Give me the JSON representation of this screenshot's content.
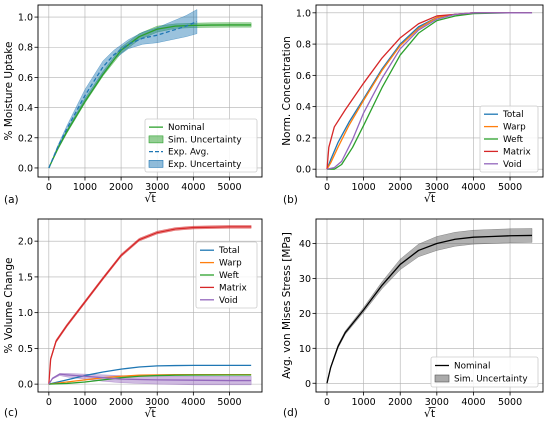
{
  "chart_data": [
    {
      "type": "line",
      "panel": "(a)",
      "xlabel": "√t",
      "ylabel": "% Moisture Uptake",
      "xlim": [
        -300,
        5900
      ],
      "ylim": [
        -0.06,
        1.08
      ],
      "xticks": [
        0,
        1000,
        2000,
        3000,
        4000,
        5000
      ],
      "yticks": [
        0.0,
        0.2,
        0.4,
        0.6,
        0.8,
        1.0
      ],
      "xtick_labels": [
        "0",
        "1000",
        "2000",
        "3000",
        "4000",
        "5000"
      ],
      "ytick_labels": [
        "0.0",
        "0.2",
        "0.4",
        "0.6",
        "0.8",
        "1.0"
      ],
      "grid": true,
      "legend_position": "lower-right",
      "legend": [
        {
          "label": "Nominal",
          "kind": "line",
          "color": "#2ca02c"
        },
        {
          "label": "Sim. Uncertainty",
          "kind": "patch",
          "color": "#2ca02c"
        },
        {
          "label": "Exp. Avg.",
          "kind": "dashed",
          "color": "#1f77b4"
        },
        {
          "label": "Exp. Uncertainty",
          "kind": "patch",
          "color": "#1f77b4"
        }
      ],
      "series": [
        {
          "name": "Nominal",
          "color": "#2ca02c",
          "x": [
            0,
            250,
            500,
            1000,
            1500,
            2000,
            2500,
            3000,
            3500,
            4000,
            4500,
            5000,
            5600
          ],
          "y": [
            0.0,
            0.13,
            0.24,
            0.44,
            0.62,
            0.78,
            0.87,
            0.92,
            0.94,
            0.945,
            0.947,
            0.948,
            0.948
          ]
        },
        {
          "name": "Exp. Avg.",
          "color": "#1f77b4",
          "dash": true,
          "x": [
            0,
            250,
            500,
            1000,
            1500,
            1800,
            2200,
            2600,
            3000,
            3400,
            3800,
            4100
          ],
          "y": [
            0.0,
            0.14,
            0.26,
            0.48,
            0.67,
            0.75,
            0.82,
            0.86,
            0.88,
            0.91,
            0.94,
            0.97
          ]
        }
      ],
      "bands": [
        {
          "name": "Sim. Uncertainty",
          "color": "#2ca02c",
          "x": [
            0,
            250,
            500,
            1000,
            1500,
            2000,
            2500,
            3000,
            3500,
            4000,
            4500,
            5000,
            5600
          ],
          "lower": [
            0.0,
            0.12,
            0.23,
            0.43,
            0.61,
            0.76,
            0.85,
            0.9,
            0.925,
            0.93,
            0.932,
            0.933,
            0.933
          ],
          "upper": [
            0.0,
            0.14,
            0.25,
            0.46,
            0.64,
            0.8,
            0.89,
            0.94,
            0.955,
            0.96,
            0.962,
            0.963,
            0.963
          ]
        },
        {
          "name": "Exp. Uncertainty",
          "color": "#1f77b4",
          "x": [
            0,
            250,
            500,
            1000,
            1500,
            1800,
            2200,
            2600,
            3000,
            3400,
            3800,
            4100
          ],
          "lower": [
            0.0,
            0.13,
            0.24,
            0.44,
            0.63,
            0.72,
            0.79,
            0.82,
            0.83,
            0.85,
            0.87,
            0.89
          ],
          "upper": [
            0.0,
            0.15,
            0.28,
            0.52,
            0.71,
            0.78,
            0.85,
            0.9,
            0.93,
            0.97,
            1.01,
            1.05
          ]
        }
      ]
    },
    {
      "type": "line",
      "panel": "(b)",
      "xlabel": "√t",
      "ylabel": "Norm. Concentration",
      "xlim": [
        -300,
        5900
      ],
      "ylim": [
        -0.05,
        1.05
      ],
      "xticks": [
        0,
        1000,
        2000,
        3000,
        4000,
        5000
      ],
      "yticks": [
        0.0,
        0.2,
        0.4,
        0.6,
        0.8,
        1.0
      ],
      "xtick_labels": [
        "0",
        "1000",
        "2000",
        "3000",
        "4000",
        "5000"
      ],
      "ytick_labels": [
        "0.0",
        "0.2",
        "0.4",
        "0.6",
        "0.8",
        "1.0"
      ],
      "grid": true,
      "legend_position": "lower-right",
      "legend": [
        {
          "label": "Total",
          "kind": "line",
          "color": "#1f77b4"
        },
        {
          "label": "Warp",
          "kind": "line",
          "color": "#ff7f0e"
        },
        {
          "label": "Weft",
          "kind": "line",
          "color": "#2ca02c"
        },
        {
          "label": "Matrix",
          "kind": "line",
          "color": "#d62728"
        },
        {
          "label": "Void",
          "kind": "line",
          "color": "#9467bd"
        }
      ],
      "series": [
        {
          "name": "Total",
          "color": "#1f77b4",
          "x": [
            0,
            100,
            300,
            600,
            1000,
            1500,
            2000,
            2500,
            3000,
            3500,
            4000,
            5000,
            5600
          ],
          "y": [
            0.0,
            0.06,
            0.17,
            0.3,
            0.45,
            0.64,
            0.8,
            0.91,
            0.97,
            0.99,
            1.0,
            1.0,
            1.0
          ]
        },
        {
          "name": "Warp",
          "color": "#ff7f0e",
          "x": [
            0,
            100,
            300,
            600,
            1000,
            1500,
            2000,
            2500,
            3000,
            3500,
            4000,
            5000,
            5600
          ],
          "y": [
            0.0,
            0.04,
            0.14,
            0.28,
            0.44,
            0.63,
            0.79,
            0.9,
            0.97,
            0.99,
            1.0,
            1.0,
            1.0
          ]
        },
        {
          "name": "Weft",
          "color": "#2ca02c",
          "x": [
            0,
            200,
            400,
            700,
            1000,
            1500,
            2000,
            2500,
            3000,
            3500,
            4000,
            5000,
            5600
          ],
          "y": [
            0.0,
            0.0,
            0.03,
            0.14,
            0.28,
            0.52,
            0.73,
            0.87,
            0.95,
            0.98,
            0.995,
            1.0,
            1.0
          ]
        },
        {
          "name": "Matrix",
          "color": "#d62728",
          "x": [
            0,
            50,
            200,
            500,
            1000,
            1500,
            2000,
            2500,
            3000,
            3500,
            4000,
            5000,
            5600
          ],
          "y": [
            0.0,
            0.14,
            0.27,
            0.38,
            0.55,
            0.71,
            0.84,
            0.93,
            0.98,
            0.99,
            1.0,
            1.0,
            1.0
          ]
        },
        {
          "name": "Void",
          "color": "#9467bd",
          "x": [
            0,
            200,
            400,
            700,
            1000,
            1500,
            2000,
            2500,
            3000,
            3500,
            4000,
            5000,
            5600
          ],
          "y": [
            0.0,
            0.01,
            0.05,
            0.19,
            0.36,
            0.58,
            0.77,
            0.89,
            0.96,
            0.99,
            1.0,
            1.0,
            1.0
          ]
        }
      ]
    },
    {
      "type": "line",
      "panel": "(c)",
      "xlabel": "√t",
      "ylabel": "% Volume Change",
      "xlim": [
        -300,
        5900
      ],
      "ylim": [
        -0.11,
        2.31
      ],
      "xticks": [
        0,
        1000,
        2000,
        3000,
        4000,
        5000
      ],
      "yticks": [
        0.0,
        0.5,
        1.0,
        1.5,
        2.0
      ],
      "xtick_labels": [
        "0",
        "1000",
        "2000",
        "3000",
        "4000",
        "5000"
      ],
      "ytick_labels": [
        "0.0",
        "0.5",
        "1.0",
        "1.5",
        "2.0"
      ],
      "grid": true,
      "legend_position": "center-right",
      "legend": [
        {
          "label": "Total",
          "kind": "line",
          "color": "#1f77b4"
        },
        {
          "label": "Warp",
          "kind": "line",
          "color": "#ff7f0e"
        },
        {
          "label": "Weft",
          "kind": "line",
          "color": "#2ca02c"
        },
        {
          "label": "Matrix",
          "kind": "line",
          "color": "#d62728"
        },
        {
          "label": "Void",
          "kind": "line",
          "color": "#9467bd"
        }
      ],
      "series": [
        {
          "name": "Total",
          "color": "#1f77b4",
          "x": [
            0,
            500,
            1000,
            1500,
            2000,
            2500,
            3000,
            3500,
            4000,
            5000,
            5600
          ],
          "y": [
            0.0,
            0.06,
            0.12,
            0.17,
            0.21,
            0.24,
            0.255,
            0.26,
            0.262,
            0.263,
            0.263
          ]
        },
        {
          "name": "Warp",
          "color": "#ff7f0e",
          "x": [
            0,
            500,
            1000,
            1500,
            2000,
            2500,
            3000,
            3500,
            4000,
            5000,
            5600
          ],
          "y": [
            0.0,
            0.03,
            0.06,
            0.09,
            0.11,
            0.125,
            0.13,
            0.132,
            0.133,
            0.133,
            0.133
          ]
        },
        {
          "name": "Weft",
          "color": "#2ca02c",
          "x": [
            0,
            500,
            1000,
            1500,
            2000,
            2500,
            3000,
            3500,
            4000,
            5000,
            5600
          ],
          "y": [
            0.0,
            0.01,
            0.03,
            0.06,
            0.09,
            0.11,
            0.12,
            0.125,
            0.127,
            0.128,
            0.128
          ]
        },
        {
          "name": "Matrix",
          "color": "#d62728",
          "x": [
            0,
            50,
            200,
            500,
            1000,
            1500,
            2000,
            2500,
            3000,
            3500,
            4000,
            5000,
            5600
          ],
          "y": [
            0.0,
            0.35,
            0.6,
            0.82,
            1.15,
            1.48,
            1.8,
            2.02,
            2.12,
            2.17,
            2.19,
            2.2,
            2.2
          ]
        },
        {
          "name": "Void",
          "color": "#9467bd",
          "x": [
            0,
            100,
            300,
            500,
            1000,
            1500,
            2000,
            3000,
            4000,
            5000,
            5600
          ],
          "y": [
            0.0,
            0.08,
            0.14,
            0.13,
            0.11,
            0.09,
            0.07,
            0.06,
            0.055,
            0.05,
            0.05
          ]
        }
      ],
      "bands": [
        {
          "name": "Matrix",
          "color": "#d62728",
          "x": [
            0,
            50,
            200,
            500,
            1000,
            1500,
            2000,
            2500,
            3000,
            3500,
            4000,
            5000,
            5600
          ],
          "lower": [
            0.0,
            0.33,
            0.58,
            0.8,
            1.13,
            1.46,
            1.78,
            2.0,
            2.1,
            2.15,
            2.17,
            2.18,
            2.18
          ],
          "upper": [
            0.0,
            0.37,
            0.62,
            0.84,
            1.17,
            1.5,
            1.82,
            2.04,
            2.14,
            2.19,
            2.21,
            2.22,
            2.22
          ]
        },
        {
          "name": "Void",
          "color": "#9467bd",
          "x": [
            0,
            100,
            300,
            500,
            1000,
            1500,
            2000,
            3000,
            4000,
            5000,
            5600
          ],
          "lower": [
            0.0,
            0.07,
            0.12,
            0.1,
            0.07,
            0.04,
            0.02,
            0.0,
            -0.01,
            -0.01,
            -0.01
          ],
          "upper": [
            0.0,
            0.09,
            0.15,
            0.15,
            0.14,
            0.13,
            0.12,
            0.11,
            0.11,
            0.11,
            0.11
          ]
        }
      ]
    },
    {
      "type": "line",
      "panel": "(d)",
      "xlabel": "√t",
      "ylabel": "Avg. von Mises Stress [MPa]",
      "xlim": [
        -300,
        5900
      ],
      "ylim": [
        -2.5,
        47
      ],
      "xticks": [
        0,
        1000,
        2000,
        3000,
        4000,
        5000
      ],
      "yticks": [
        0,
        10,
        20,
        30,
        40
      ],
      "xtick_labels": [
        "0",
        "1000",
        "2000",
        "3000",
        "4000",
        "5000"
      ],
      "ytick_labels": [
        "0",
        "10",
        "20",
        "30",
        "40"
      ],
      "grid": true,
      "legend_position": "lower-right",
      "legend": [
        {
          "label": "Nominal",
          "kind": "line",
          "color": "#000000"
        },
        {
          "label": "Sim. Uncertainty",
          "kind": "patch",
          "color": "#555555"
        }
      ],
      "series": [
        {
          "name": "Nominal",
          "color": "#000000",
          "x": [
            0,
            100,
            300,
            500,
            1000,
            1500,
            2000,
            2500,
            3000,
            3500,
            4000,
            4500,
            5000,
            5600
          ],
          "y": [
            0,
            4.5,
            10.5,
            14.5,
            21,
            28,
            34,
            38,
            40,
            41.2,
            41.8,
            42,
            42.2,
            42.3
          ]
        }
      ],
      "bands": [
        {
          "name": "Sim. Uncertainty",
          "color": "#555555",
          "x": [
            0,
            100,
            300,
            500,
            1000,
            1500,
            2000,
            2500,
            3000,
            3500,
            4000,
            4500,
            5000,
            5600
          ],
          "lower": [
            0,
            4.2,
            10,
            14,
            20.3,
            27,
            32.5,
            36.2,
            38,
            39.2,
            39.8,
            40,
            40.2,
            40.3
          ],
          "upper": [
            0,
            4.8,
            11,
            15,
            21.7,
            29,
            35.5,
            39.8,
            42,
            43.2,
            43.8,
            44,
            44.2,
            44.3
          ]
        }
      ]
    }
  ]
}
